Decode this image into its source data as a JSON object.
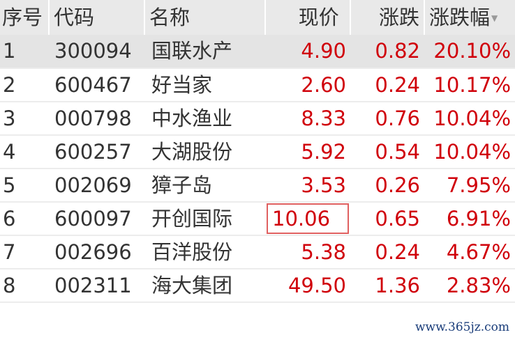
{
  "columns": [
    "序号",
    "代码",
    "名称",
    "现价",
    "涨跌",
    "涨跌幅"
  ],
  "sort_icon": "triangle-down-icon",
  "colors": {
    "up": "#d0000a",
    "highlight_border": "#e06060"
  },
  "rows": [
    {
      "idx": "1",
      "code": "300094",
      "name": "国联水产",
      "price": "4.90",
      "change": "0.82",
      "pct": "20.10%"
    },
    {
      "idx": "2",
      "code": "600467",
      "name": "好当家",
      "price": "2.60",
      "change": "0.24",
      "pct": "10.17%"
    },
    {
      "idx": "3",
      "code": "000798",
      "name": "中水渔业",
      "price": "8.33",
      "change": "0.76",
      "pct": "10.04%"
    },
    {
      "idx": "4",
      "code": "600257",
      "name": "大湖股份",
      "price": "5.92",
      "change": "0.54",
      "pct": "10.04%"
    },
    {
      "idx": "5",
      "code": "002069",
      "name": "獐子岛",
      "price": "3.53",
      "change": "0.26",
      "pct": "7.95%"
    },
    {
      "idx": "6",
      "code": "600097",
      "name": "开创国际",
      "price": "10.06",
      "change": "0.65",
      "pct": "6.91%"
    },
    {
      "idx": "7",
      "code": "002696",
      "name": "百洋股份",
      "price": "5.38",
      "change": "0.24",
      "pct": "4.67%"
    },
    {
      "idx": "8",
      "code": "002311",
      "name": "海大集团",
      "price": "49.50",
      "change": "1.36",
      "pct": "2.83%"
    }
  ],
  "watermark": "www.365jz.com"
}
